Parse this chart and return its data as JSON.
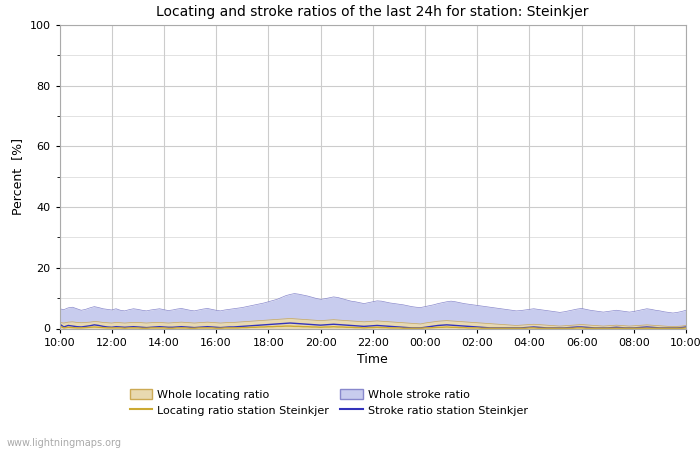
{
  "title": "Locating and stroke ratios of the last 24h for station: Steinkjer",
  "xlabel": "Time",
  "ylabel": "Percent  [%]",
  "ylim": [
    0,
    100
  ],
  "yticks": [
    0,
    20,
    40,
    60,
    80,
    100
  ],
  "ytick_minor": [
    10,
    30,
    50,
    70,
    90
  ],
  "x_labels": [
    "10:00",
    "12:00",
    "14:00",
    "16:00",
    "18:00",
    "20:00",
    "22:00",
    "00:00",
    "02:00",
    "04:00",
    "06:00",
    "08:00",
    "10:00"
  ],
  "background_color": "#ffffff",
  "plot_bg_color": "#ffffff",
  "grid_color": "#cccccc",
  "watermark": "www.lightningmaps.org",
  "whole_locating_fill_color": "#e8d9b0",
  "whole_locating_line_color": "#ccaa55",
  "whole_stroke_fill_color": "#c8ccee",
  "whole_stroke_line_color": "#8888cc",
  "station_locating_line_color": "#ccaa33",
  "station_stroke_line_color": "#3333bb",
  "legend_labels": [
    "Whole locating ratio",
    "Locating ratio station Steinkjer",
    "Whole stroke ratio",
    "Stroke ratio station Steinkjer"
  ],
  "n_points": 145,
  "whole_stroke_ratio": [
    6.5,
    6.2,
    6.8,
    7.0,
    6.5,
    6.0,
    6.3,
    6.8,
    7.2,
    6.9,
    6.5,
    6.3,
    6.1,
    6.5,
    6.0,
    5.8,
    6.2,
    6.5,
    6.3,
    6.0,
    5.8,
    6.1,
    6.3,
    6.5,
    6.2,
    5.9,
    6.1,
    6.4,
    6.6,
    6.3,
    6.0,
    5.8,
    6.1,
    6.4,
    6.6,
    6.3,
    6.0,
    5.8,
    6.1,
    6.3,
    6.5,
    6.7,
    6.9,
    7.2,
    7.5,
    7.8,
    8.1,
    8.4,
    8.8,
    9.2,
    9.6,
    10.2,
    10.8,
    11.2,
    11.5,
    11.3,
    11.0,
    10.7,
    10.3,
    9.9,
    9.6,
    9.8,
    10.1,
    10.4,
    10.2,
    9.8,
    9.4,
    9.0,
    8.8,
    8.5,
    8.2,
    8.5,
    8.8,
    9.1,
    9.0,
    8.7,
    8.4,
    8.2,
    8.0,
    7.8,
    7.5,
    7.2,
    7.0,
    6.9,
    7.2,
    7.5,
    7.8,
    8.2,
    8.5,
    8.8,
    9.0,
    8.8,
    8.5,
    8.2,
    8.0,
    7.8,
    7.6,
    7.4,
    7.2,
    7.0,
    6.8,
    6.6,
    6.4,
    6.2,
    6.0,
    5.8,
    5.9,
    6.1,
    6.3,
    6.5,
    6.3,
    6.1,
    5.9,
    5.7,
    5.5,
    5.3,
    5.5,
    5.8,
    6.1,
    6.4,
    6.6,
    6.3,
    6.0,
    5.8,
    5.6,
    5.4,
    5.6,
    5.8,
    6.0,
    5.8,
    5.6,
    5.4,
    5.6,
    5.9,
    6.2,
    6.5,
    6.3,
    6.0,
    5.8,
    5.5,
    5.3,
    5.1,
    5.3,
    5.6,
    6.0
  ],
  "whole_locating_ratio": [
    2.0,
    1.8,
    2.1,
    2.2,
    2.0,
    1.9,
    2.0,
    2.1,
    2.3,
    2.2,
    2.0,
    1.9,
    1.8,
    2.0,
    1.9,
    1.8,
    1.9,
    2.0,
    2.0,
    1.9,
    1.8,
    1.9,
    2.0,
    2.0,
    1.9,
    1.8,
    1.9,
    2.0,
    2.1,
    2.0,
    1.9,
    1.8,
    1.9,
    2.0,
    2.1,
    2.0,
    1.9,
    1.8,
    1.9,
    2.0,
    2.0,
    2.1,
    2.2,
    2.3,
    2.4,
    2.5,
    2.6,
    2.7,
    2.8,
    2.9,
    3.0,
    3.1,
    3.2,
    3.3,
    3.2,
    3.1,
    3.0,
    2.9,
    2.8,
    2.7,
    2.6,
    2.7,
    2.8,
    2.9,
    2.8,
    2.7,
    2.6,
    2.5,
    2.4,
    2.3,
    2.2,
    2.3,
    2.4,
    2.5,
    2.4,
    2.3,
    2.2,
    2.1,
    2.0,
    1.9,
    1.8,
    1.7,
    1.6,
    1.5,
    1.8,
    2.0,
    2.2,
    2.4,
    2.5,
    2.6,
    2.5,
    2.4,
    2.3,
    2.2,
    2.1,
    2.0,
    1.9,
    1.8,
    1.7,
    1.6,
    1.5,
    1.4,
    1.3,
    1.2,
    1.1,
    1.0,
    1.1,
    1.2,
    1.3,
    1.4,
    1.3,
    1.2,
    1.1,
    1.0,
    0.9,
    0.8,
    0.9,
    1.0,
    1.1,
    1.2,
    1.3,
    1.2,
    1.1,
    1.0,
    0.9,
    0.8,
    0.9,
    1.0,
    1.1,
    1.0,
    0.9,
    0.8,
    0.9,
    1.0,
    1.1,
    1.2,
    1.1,
    1.0,
    0.9,
    0.8,
    0.7,
    0.6,
    0.7,
    0.8,
    1.0
  ],
  "station_stroke_ratio": [
    1.5,
    0.5,
    1.0,
    0.8,
    0.6,
    0.5,
    0.7,
    0.9,
    1.2,
    1.0,
    0.7,
    0.5,
    0.4,
    0.6,
    0.5,
    0.4,
    0.5,
    0.6,
    0.5,
    0.4,
    0.3,
    0.4,
    0.5,
    0.6,
    0.5,
    0.4,
    0.4,
    0.5,
    0.6,
    0.5,
    0.4,
    0.3,
    0.4,
    0.5,
    0.6,
    0.5,
    0.4,
    0.3,
    0.4,
    0.5,
    0.5,
    0.6,
    0.7,
    0.8,
    0.9,
    1.0,
    1.1,
    1.2,
    1.3,
    1.4,
    1.5,
    1.6,
    1.7,
    1.8,
    1.7,
    1.6,
    1.5,
    1.4,
    1.3,
    1.2,
    1.1,
    1.2,
    1.3,
    1.4,
    1.3,
    1.2,
    1.1,
    1.0,
    0.9,
    0.8,
    0.7,
    0.8,
    0.9,
    1.0,
    0.9,
    0.8,
    0.7,
    0.6,
    0.5,
    0.4,
    0.3,
    0.2,
    0.2,
    0.2,
    0.4,
    0.6,
    0.8,
    1.0,
    1.1,
    1.2,
    1.1,
    1.0,
    0.9,
    0.8,
    0.7,
    0.6,
    0.5,
    0.4,
    0.3,
    0.2,
    0.2,
    0.2,
    0.2,
    0.2,
    0.2,
    0.2,
    0.2,
    0.3,
    0.4,
    0.5,
    0.4,
    0.3,
    0.2,
    0.2,
    0.2,
    0.2,
    0.2,
    0.3,
    0.4,
    0.5,
    0.5,
    0.4,
    0.3,
    0.2,
    0.2,
    0.2,
    0.2,
    0.3,
    0.4,
    0.3,
    0.2,
    0.2,
    0.2,
    0.3,
    0.4,
    0.5,
    0.4,
    0.3,
    0.2,
    0.2,
    0.2,
    0.2,
    0.2,
    0.3,
    0.5
  ],
  "station_locating_ratio": [
    0.8,
    0.2,
    0.4,
    0.3,
    0.2,
    0.2,
    0.3,
    0.4,
    0.5,
    0.4,
    0.3,
    0.2,
    0.2,
    0.2,
    0.2,
    0.1,
    0.2,
    0.2,
    0.2,
    0.1,
    0.1,
    0.2,
    0.2,
    0.2,
    0.2,
    0.1,
    0.1,
    0.2,
    0.2,
    0.2,
    0.1,
    0.1,
    0.2,
    0.2,
    0.2,
    0.2,
    0.1,
    0.1,
    0.2,
    0.2,
    0.2,
    0.2,
    0.3,
    0.3,
    0.4,
    0.4,
    0.5,
    0.5,
    0.6,
    0.6,
    0.7,
    0.7,
    0.8,
    0.8,
    0.7,
    0.7,
    0.6,
    0.6,
    0.5,
    0.5,
    0.4,
    0.5,
    0.5,
    0.6,
    0.5,
    0.5,
    0.4,
    0.4,
    0.3,
    0.3,
    0.2,
    0.3,
    0.3,
    0.4,
    0.3,
    0.3,
    0.2,
    0.2,
    0.2,
    0.1,
    0.1,
    0.1,
    0.1,
    0.1,
    0.2,
    0.2,
    0.3,
    0.4,
    0.4,
    0.5,
    0.4,
    0.4,
    0.3,
    0.3,
    0.2,
    0.2,
    0.2,
    0.1,
    0.1,
    0.1,
    0.1,
    0.1,
    0.1,
    0.1,
    0.1,
    0.1,
    0.1,
    0.1,
    0.2,
    0.2,
    0.1,
    0.1,
    0.1,
    0.1,
    0.1,
    0.1,
    0.1,
    0.1,
    0.1,
    0.2,
    0.2,
    0.1,
    0.1,
    0.1,
    0.1,
    0.1,
    0.1,
    0.1,
    0.1,
    0.1,
    0.1,
    0.1,
    0.1,
    0.1,
    0.1,
    0.1,
    0.1,
    0.1,
    0.1,
    0.1,
    0.1,
    0.1,
    0.1,
    0.1,
    0.2
  ]
}
